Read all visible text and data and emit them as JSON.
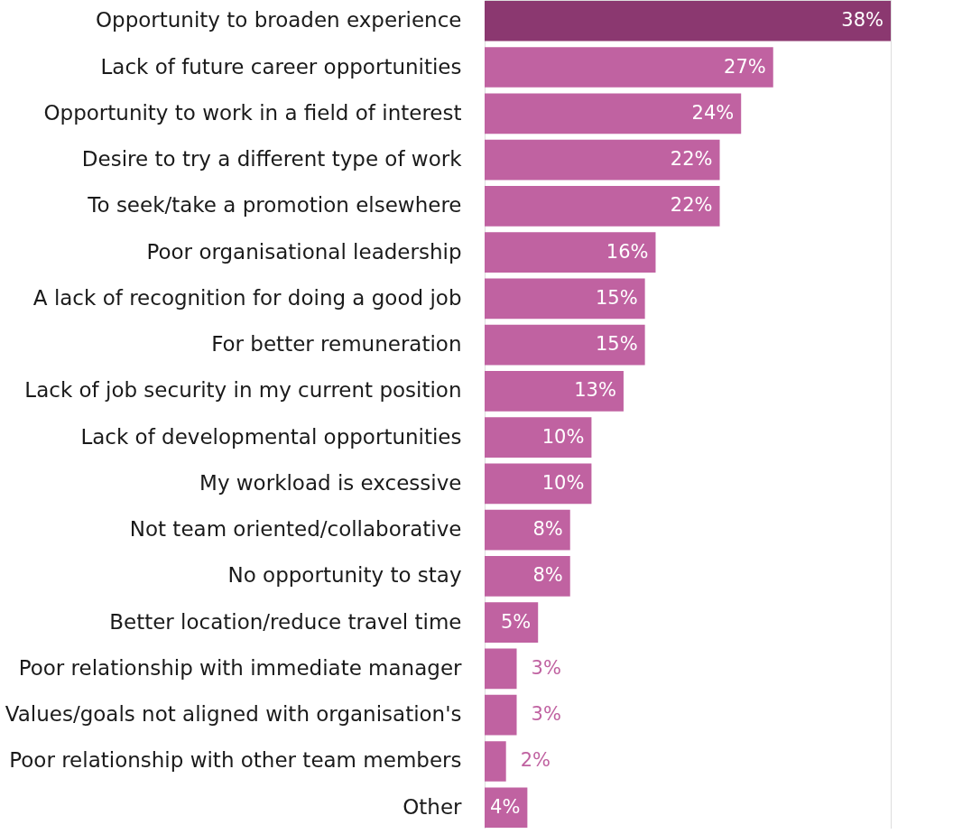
{
  "chart_data": {
    "type": "bar",
    "orientation": "horizontal",
    "categories": [
      "Opportunity to broaden experience",
      "Lack of future career opportunities",
      "Opportunity to work in a field of interest",
      "Desire to try a different type of work",
      "To seek/take a promotion elsewhere",
      "Poor organisational leadership",
      "A lack of recognition for doing a good job",
      "For better remuneration",
      "Lack of job security in my current position",
      "Lack of developmental opportunities",
      "My workload is excessive",
      "Not team oriented/collaborative",
      "No opportunity to stay",
      "Better location/reduce travel time",
      "Poor relationship with immediate manager",
      "Values/goals not aligned with organisation's",
      "Poor relationship with other team members",
      "Other"
    ],
    "values": [
      38,
      27,
      24,
      22,
      22,
      16,
      15,
      15,
      13,
      10,
      10,
      8,
      8,
      5,
      3,
      3,
      2,
      4
    ],
    "value_labels": [
      "38%",
      "27%",
      "24%",
      "22%",
      "22%",
      "16%",
      "15%",
      "15%",
      "13%",
      "10%",
      "10%",
      "8%",
      "8%",
      "5%",
      "3%",
      "3%",
      "2%",
      "4%"
    ],
    "colors": [
      "#8b3870",
      "#c062a1",
      "#c062a1",
      "#c062a1",
      "#c062a1",
      "#c062a1",
      "#c062a1",
      "#c062a1",
      "#c062a1",
      "#c062a1",
      "#c062a1",
      "#c062a1",
      "#c062a1",
      "#c062a1",
      "#c062a1",
      "#c062a1",
      "#c062a1",
      "#c062a1"
    ],
    "grid": false
  }
}
